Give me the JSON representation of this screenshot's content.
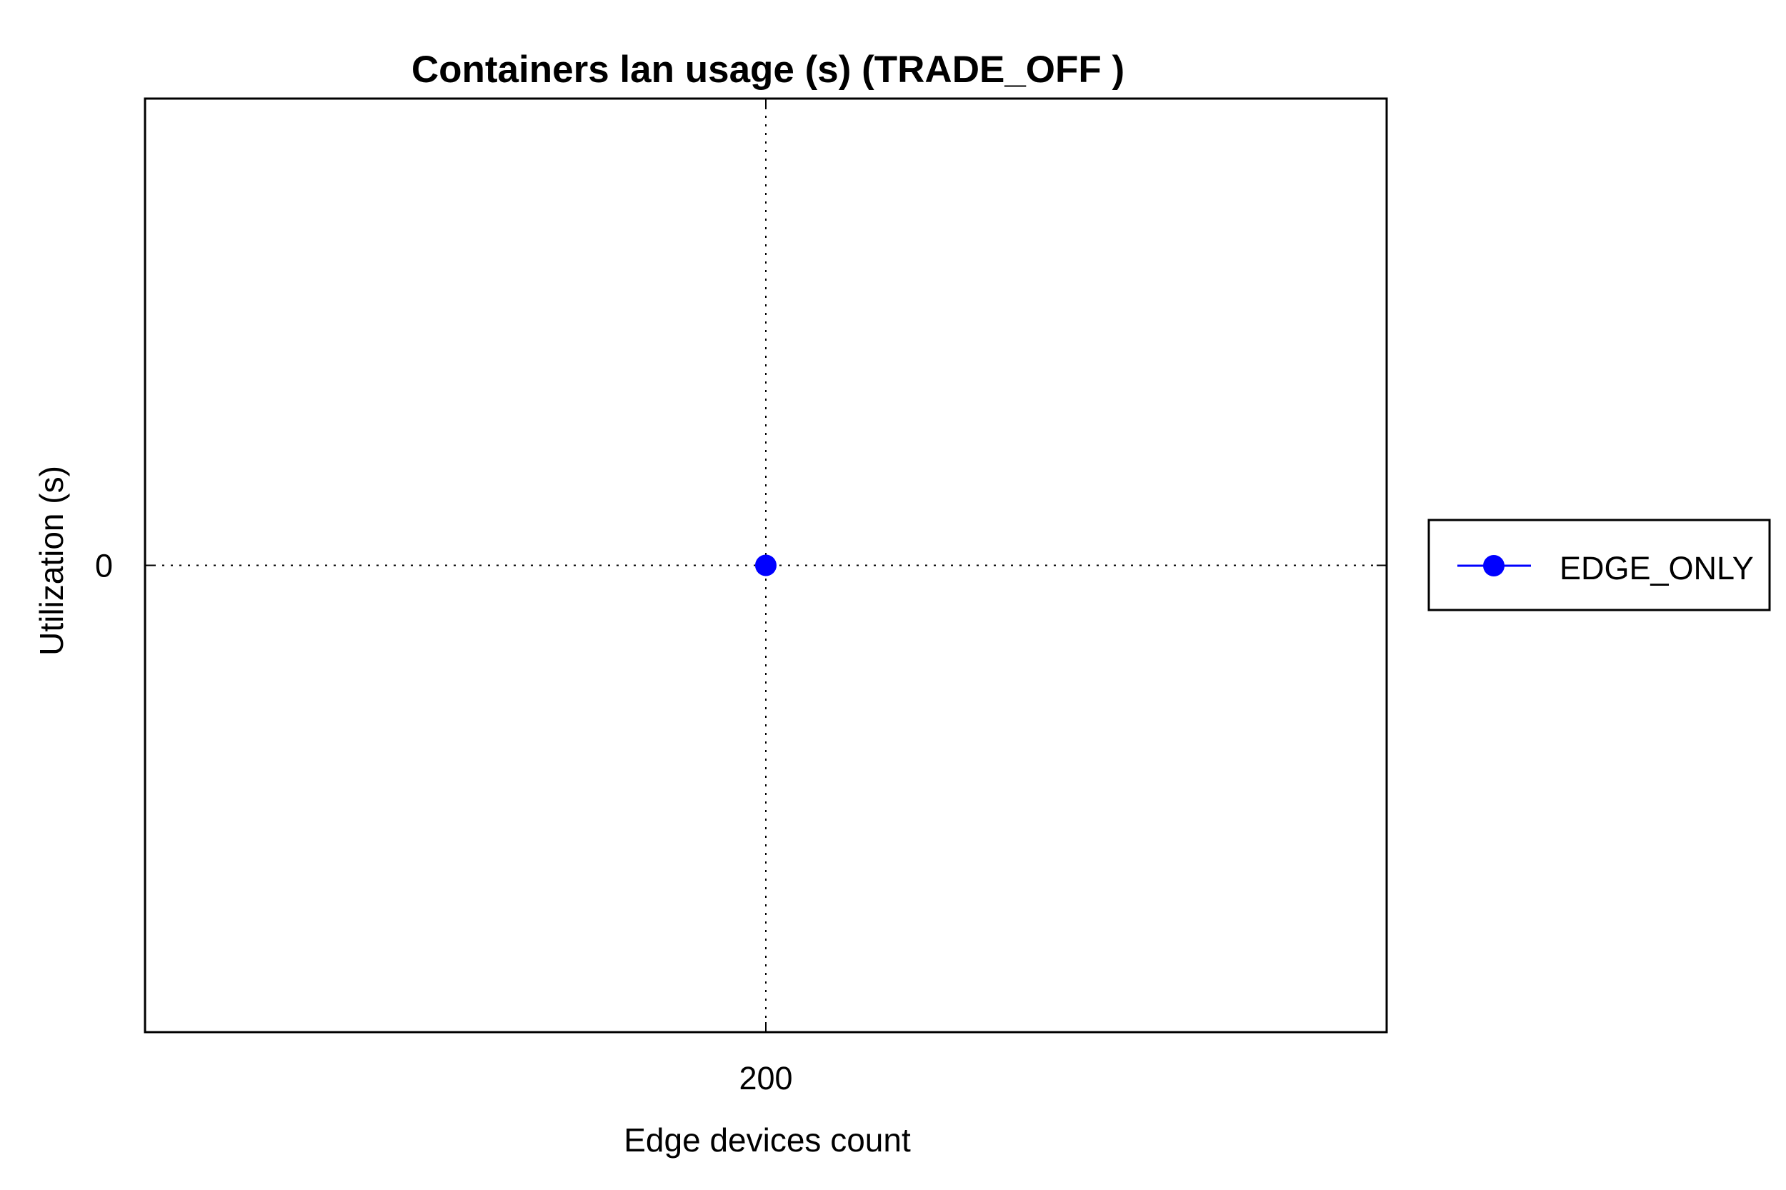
{
  "chart_data": {
    "type": "line",
    "title": "Containers lan usage (s) (TRADE_OFF )",
    "xlabel": "Edge devices count",
    "ylabel": "Utilization (s)",
    "x_ticks": [
      "200"
    ],
    "y_ticks": [
      "0"
    ],
    "xlim": [
      199,
      201
    ],
    "ylim": [
      -1,
      1
    ],
    "grid": true,
    "grid_style": "dotted",
    "legend_position": "outside-right",
    "series": [
      {
        "name": "EDGE_ONLY",
        "color": "#0000ff",
        "marker": "circle",
        "x": [
          200
        ],
        "y": [
          0
        ]
      }
    ]
  }
}
